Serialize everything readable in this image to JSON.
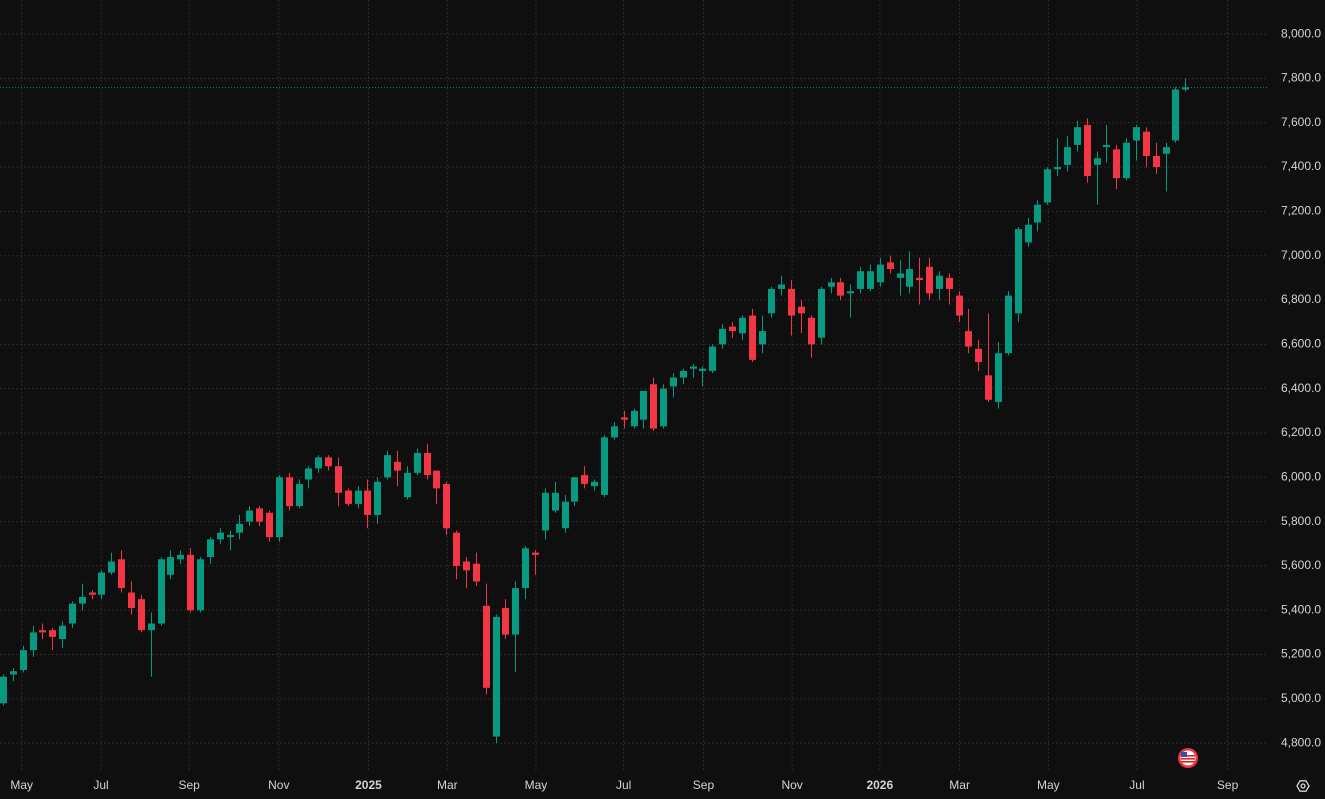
{
  "chart_data": {
    "type": "candlestick",
    "up_color": "#089981",
    "down_color": "#f23645",
    "grid": true,
    "xlim": [
      -0.3,
      128.4
    ],
    "ylim": [
      4670,
      8154
    ],
    "yticks": [
      {
        "value": 4800,
        "label": "4,800.0"
      },
      {
        "value": 5000,
        "label": "5,000.0"
      },
      {
        "value": 5200,
        "label": "5,200.0"
      },
      {
        "value": 5400,
        "label": "5,400.0"
      },
      {
        "value": 5600,
        "label": "5,600.0"
      },
      {
        "value": 5800,
        "label": "5,800.0"
      },
      {
        "value": 6000,
        "label": "6,000.0"
      },
      {
        "value": 6200,
        "label": "6,200.0"
      },
      {
        "value": 6400,
        "label": "6,400.0"
      },
      {
        "value": 6600,
        "label": "6,600.0"
      },
      {
        "value": 6800,
        "label": "6,800.0"
      },
      {
        "value": 7000,
        "label": "7,000.0"
      },
      {
        "value": 7200,
        "label": "7,200.0"
      },
      {
        "value": 7400,
        "label": "7,400.0"
      },
      {
        "value": 7600,
        "label": "7,600.0"
      },
      {
        "value": 7800,
        "label": "7,800.0"
      },
      {
        "value": 8000,
        "label": "8,000.0"
      }
    ],
    "xticks": [
      {
        "value": 1.9,
        "label": "May"
      },
      {
        "value": 9.95,
        "label": "Jul"
      },
      {
        "value": 18.9,
        "label": "Sep"
      },
      {
        "value": 28.0,
        "label": "Nov"
      },
      {
        "value": 37.1,
        "label": "2025"
      },
      {
        "value": 45.1,
        "label": "Mar"
      },
      {
        "value": 54.1,
        "label": "May"
      },
      {
        "value": 63.0,
        "label": "Jul"
      },
      {
        "value": 71.1,
        "label": "Sep"
      },
      {
        "value": 80.1,
        "label": "Nov"
      },
      {
        "value": 89.0,
        "label": "2026"
      },
      {
        "value": 97.1,
        "label": "Mar"
      },
      {
        "value": 106.1,
        "label": "May"
      },
      {
        "value": 115.1,
        "label": "Jul"
      },
      {
        "value": 124.3,
        "label": "Sep"
      }
    ],
    "open": [
      4980,
      5110,
      5130,
      5220,
      5310,
      5310,
      5270,
      5340,
      5430,
      5480,
      5470,
      5570,
      5630,
      5480,
      5450,
      5310,
      5340,
      5560,
      5630,
      5650,
      5400,
      5640,
      5720,
      5730,
      5750,
      5800,
      5860,
      5840,
      5730,
      6000,
      5870,
      5990,
      6040,
      6090,
      6050,
      5940,
      5880,
      5940,
      5830,
      6000,
      6070,
      5910,
      6020,
      6110,
      6030,
      5970,
      5750,
      5620,
      5610,
      5420,
      4830,
      5410,
      5290,
      5500,
      5660,
      5760,
      5850,
      5770,
      5890,
      6010,
      5960,
      5920,
      6180,
      6270,
      6230,
      6260,
      6420,
      6230,
      6410,
      6450,
      6490,
      6480,
      6480,
      6600,
      6680,
      6650,
      6730,
      6600,
      6740,
      6850,
      6850,
      6770,
      6720,
      6630,
      6860,
      6880,
      6830,
      6850,
      6850,
      6880,
      6970,
      6900,
      6860,
      6900,
      6950,
      6850,
      6900,
      6820,
      6660,
      6580,
      6460,
      6340,
      6560,
      6740,
      7060,
      7150,
      7240,
      7390,
      7410,
      7500,
      7590,
      7410,
      7490,
      7480,
      7350,
      7520,
      7560,
      7450,
      7460,
      7520,
      7750
    ],
    "high": [
      5110,
      5140,
      5240,
      5330,
      5340,
      5320,
      5350,
      5440,
      5520,
      5490,
      5580,
      5660,
      5670,
      5530,
      5470,
      5390,
      5640,
      5670,
      5670,
      5680,
      5640,
      5730,
      5770,
      5760,
      5830,
      5870,
      5870,
      5850,
      6010,
      6020,
      5990,
      6050,
      6100,
      6100,
      6090,
      5950,
      5960,
      5990,
      6000,
      6120,
      6120,
      6050,
      6130,
      6150,
      6030,
      5980,
      5760,
      5640,
      5660,
      5520,
      5380,
      5450,
      5530,
      5690,
      5670,
      5950,
      5980,
      5920,
      6000,
      6050,
      5990,
      6190,
      6250,
      6300,
      6310,
      6390,
      6450,
      6420,
      6470,
      6490,
      6510,
      6500,
      6600,
      6690,
      6700,
      6730,
      6760,
      6730,
      6860,
      6910,
      6890,
      6800,
      6730,
      6860,
      6900,
      6900,
      6870,
      6950,
      6960,
      6990,
      7000,
      6980,
      7020,
      6990,
      6990,
      6930,
      6920,
      6840,
      6760,
      6620,
      6740,
      6610,
      6840,
      7130,
      7170,
      7250,
      7400,
      7530,
      7540,
      7610,
      7620,
      7470,
      7590,
      7500,
      7530,
      7590,
      7580,
      7510,
      7510,
      7760,
      7800
    ],
    "low": [
      4970,
      5080,
      5120,
      5190,
      5270,
      5220,
      5230,
      5320,
      5400,
      5450,
      5450,
      5560,
      5480,
      5380,
      5300,
      5100,
      5330,
      5540,
      5610,
      5390,
      5390,
      5610,
      5700,
      5670,
      5720,
      5780,
      5780,
      5710,
      5710,
      5850,
      5860,
      5950,
      6020,
      6030,
      5870,
      5870,
      5860,
      5770,
      5790,
      5990,
      5960,
      5900,
      6010,
      5990,
      5880,
      5740,
      5540,
      5500,
      5510,
      5020,
      4800,
      5270,
      5120,
      5450,
      5560,
      5720,
      5840,
      5750,
      5870,
      5950,
      5940,
      5910,
      6170,
      6220,
      6220,
      6220,
      6210,
      6220,
      6360,
      6420,
      6450,
      6410,
      6470,
      6580,
      6630,
      6620,
      6520,
      6560,
      6720,
      6820,
      6640,
      6650,
      6540,
      6600,
      6830,
      6800,
      6720,
      6830,
      6840,
      6860,
      6920,
      6820,
      6830,
      6780,
      6800,
      6800,
      6780,
      6700,
      6560,
      6480,
      6340,
      6310,
      6550,
      6700,
      7040,
      7110,
      7230,
      7360,
      7380,
      7470,
      7330,
      7230,
      7420,
      7300,
      7340,
      7430,
      7400,
      7370,
      7290,
      7510,
      7740
    ],
    "close": [
      5100,
      5125,
      5220,
      5300,
      5300,
      5280,
      5330,
      5430,
      5460,
      5470,
      5570,
      5620,
      5500,
      5410,
      5310,
      5340,
      5630,
      5640,
      5650,
      5400,
      5630,
      5720,
      5750,
      5740,
      5790,
      5850,
      5800,
      5730,
      6000,
      5870,
      5970,
      6040,
      6090,
      6050,
      5930,
      5880,
      5940,
      5830,
      5980,
      6100,
      6030,
      6020,
      6110,
      6010,
      5950,
      5770,
      5600,
      5580,
      5530,
      5050,
      5370,
      5290,
      5500,
      5680,
      5650,
      5930,
      5930,
      5890,
      6000,
      5970,
      5980,
      6180,
      6230,
      6260,
      6300,
      6390,
      6220,
      6400,
      6450,
      6480,
      6500,
      6490,
      6590,
      6670,
      6660,
      6720,
      6530,
      6660,
      6850,
      6870,
      6730,
      6740,
      6600,
      6850,
      6880,
      6820,
      6840,
      6930,
      6930,
      6960,
      6940,
      6920,
      6940,
      6890,
      6830,
      6910,
      6850,
      6730,
      6590,
      6520,
      6350,
      6560,
      6820,
      7120,
      7140,
      7230,
      7390,
      7400,
      7490,
      7580,
      7360,
      7440,
      7500,
      7350,
      7510,
      7580,
      7450,
      7400,
      7490,
      7750,
      7760
    ]
  }
}
